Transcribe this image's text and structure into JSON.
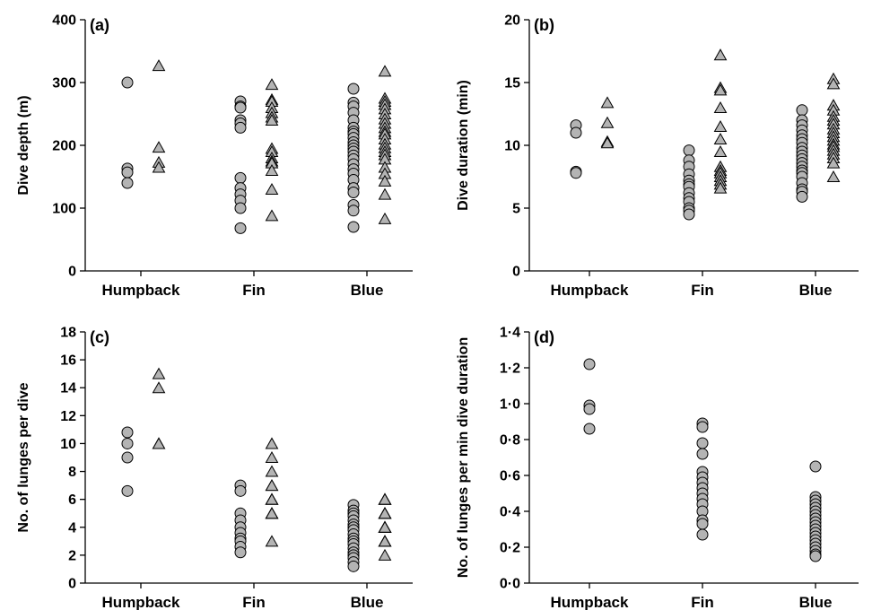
{
  "colors": {
    "marker_fill": "#b4b4b4",
    "marker_stroke": "#000000",
    "axis": "#000000"
  },
  "chart_data": [
    {
      "type": "scatter",
      "panel_label": "(a)",
      "ylabel": "Dive depth (m)",
      "categories": [
        "Humpback",
        "Fin",
        "Blue"
      ],
      "ylim": [
        0,
        400
      ],
      "yticks": [
        0,
        100,
        200,
        300,
        400
      ],
      "ytick_labels": [
        "0",
        "100",
        "200",
        "300",
        "400"
      ],
      "series": [
        {
          "marker": "circle",
          "values": [
            [
              300,
              163,
              157,
              140
            ],
            [
              270,
              262,
              260,
              240,
              235,
              228,
              148,
              132,
              122,
              112,
              100,
              68
            ],
            [
              290,
              268,
              262,
              252,
              240,
              228,
              222,
              218,
              212,
              205,
              200,
              195,
              190,
              184,
              178,
              170,
              162,
              155,
              145,
              132,
              125,
              105,
              96,
              70
            ]
          ]
        },
        {
          "marker": "triangle",
          "values": [
            [
              327,
              197,
              173,
              165
            ],
            [
              297,
              273,
              270,
              260,
              252,
              245,
              240,
              195,
              190,
              180,
              175,
              172,
              160,
              130,
              88
            ],
            [
              318,
              275,
              270,
              265,
              258,
              250,
              242,
              235,
              228,
              222,
              218,
              210,
              202,
              196,
              190,
              185,
              178,
              165,
              155,
              143,
              122,
              83
            ]
          ]
        }
      ]
    },
    {
      "type": "scatter",
      "panel_label": "(b)",
      "ylabel": "Dive duration (min)",
      "categories": [
        "Humpback",
        "Fin",
        "Blue"
      ],
      "ylim": [
        0,
        20
      ],
      "yticks": [
        0,
        5,
        10,
        15,
        20
      ],
      "ytick_labels": [
        "0",
        "5",
        "10",
        "15",
        "20"
      ],
      "series": [
        {
          "marker": "circle",
          "values": [
            [
              11.6,
              11.0,
              7.9,
              7.8
            ],
            [
              9.6,
              8.8,
              8.3,
              7.7,
              7.2,
              6.9,
              6.7,
              6.2,
              5.8,
              5.5,
              5.0,
              4.8,
              4.5
            ],
            [
              12.8,
              12.0,
              11.6,
              11.2,
              10.8,
              10.5,
              10.2,
              9.8,
              9.5,
              9.2,
              8.9,
              8.6,
              8.3,
              8.0,
              7.8,
              7.5,
              7.0,
              6.5,
              6.3,
              5.9
            ]
          ]
        },
        {
          "marker": "triangle",
          "values": [
            [
              13.4,
              11.8,
              10.3,
              10.2
            ],
            [
              17.2,
              14.6,
              14.4,
              13.0,
              11.5,
              10.5,
              9.5,
              8.3,
              8.0,
              7.8,
              7.5,
              7.2,
              6.9,
              6.6
            ],
            [
              15.3,
              14.9,
              13.2,
              12.8,
              12.3,
              12.0,
              11.7,
              11.3,
              11.0,
              10.7,
              10.4,
              10.1,
              9.9,
              9.6,
              9.3,
              9.0,
              8.6,
              7.5
            ]
          ]
        }
      ]
    },
    {
      "type": "scatter",
      "panel_label": "(c)",
      "ylabel": "No. of lunges per dive",
      "categories": [
        "Humpback",
        "Fin",
        "Blue"
      ],
      "ylim": [
        0,
        18
      ],
      "yticks": [
        0,
        2,
        4,
        6,
        8,
        10,
        12,
        14,
        16,
        18
      ],
      "ytick_labels": [
        "0",
        "2",
        "4",
        "6",
        "8",
        "10",
        "12",
        "14",
        "16",
        "18"
      ],
      "series": [
        {
          "marker": "circle",
          "values": [
            [
              10.8,
              10.0,
              9.0,
              6.6
            ],
            [
              7.0,
              6.6,
              5.0,
              4.5,
              4.0,
              3.6,
              3.2,
              3.0,
              2.6,
              2.2
            ],
            [
              5.6,
              5.2,
              5.0,
              4.8,
              4.5,
              4.2,
              4.0,
              3.8,
              3.5,
              3.2,
              3.0,
              2.8,
              2.5,
              2.2,
              2.0,
              1.8,
              1.5,
              1.2
            ]
          ]
        },
        {
          "marker": "triangle",
          "values": [
            [
              15.0,
              14.0,
              10.0,
              10.0
            ],
            [
              10.0,
              9.0,
              8.0,
              7.0,
              7.0,
              6.0,
              6.0,
              6.0,
              6.0,
              5.0,
              5.0,
              5.0,
              5.0,
              3.0
            ],
            [
              6.0,
              6.0,
              6.0,
              6.0,
              6.0,
              5.0,
              5.0,
              5.0,
              5.0,
              5.0,
              5.0,
              5.0,
              4.0,
              4.0,
              4.0,
              4.0,
              4.0,
              4.0,
              4.0,
              4.0,
              3.0,
              3.0,
              3.0,
              3.0,
              3.0,
              3.0,
              2.0
            ]
          ]
        }
      ]
    },
    {
      "type": "scatter",
      "panel_label": "(d)",
      "ylabel": "No. of lunges per min dive duration",
      "categories": [
        "Humpback",
        "Fin",
        "Blue"
      ],
      "ylim": [
        0,
        1.4
      ],
      "yticks": [
        0,
        0.2,
        0.4,
        0.6,
        0.8,
        1.0,
        1.2,
        1.4
      ],
      "ytick_labels": [
        "0·0",
        "0·2",
        "0·4",
        "0·6",
        "0·8",
        "1·0",
        "1·2",
        "1·4"
      ],
      "series": [
        {
          "marker": "circle",
          "values": [
            [
              1.22,
              0.99,
              0.97,
              0.86
            ],
            [
              0.89,
              0.87,
              0.78,
              0.72,
              0.62,
              0.59,
              0.56,
              0.53,
              0.5,
              0.47,
              0.44,
              0.4,
              0.35,
              0.33,
              0.27
            ],
            [
              0.65,
              0.48,
              0.46,
              0.44,
              0.42,
              0.4,
              0.38,
              0.36,
              0.34,
              0.32,
              0.3,
              0.28,
              0.26,
              0.24,
              0.22,
              0.2,
              0.18,
              0.16,
              0.15
            ]
          ]
        }
      ]
    }
  ]
}
